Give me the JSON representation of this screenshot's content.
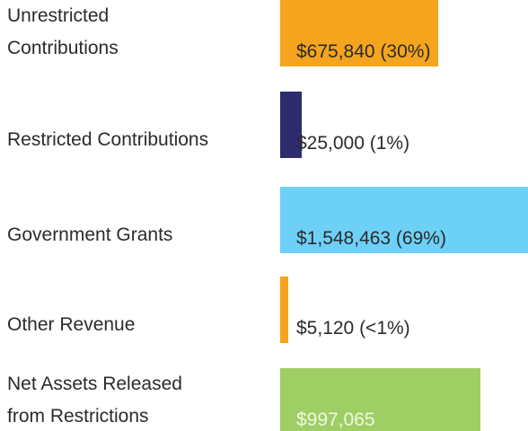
{
  "chart_data": {
    "type": "bar",
    "orientation": "horizontal",
    "categories": [
      "Unrestricted Contributions",
      "Restricted Contributions",
      "Government Grants",
      "Other Revenue",
      "Net Assets Released from Restrictions"
    ],
    "values": [
      675840,
      25000,
      1548463,
      5120,
      997065
    ],
    "value_labels": [
      "$675,840 (30%)",
      "$25,000 (1%)",
      "$1,548,463 (69%)",
      "$5,120 (<1%)",
      "$997,065"
    ],
    "colors": [
      "#f5a41e",
      "#2e2c6e",
      "#6dd0f7",
      "#f5a41e",
      "#9fcf64"
    ]
  }
}
